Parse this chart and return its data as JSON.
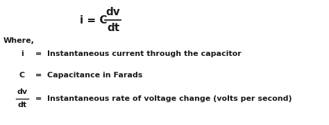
{
  "bg_color": "#ffffff",
  "text_color": "#1a1a1a",
  "where_text": "Where,",
  "line1_sym": "i",
  "line1_right": "Instantaneous current through the capacitor",
  "line2_sym": "C",
  "line2_right": "Capacitance in Farads",
  "line3_num": "dv",
  "line3_den": "dt",
  "line3_right": "Instantaneous rate of voltage change (volts per second)",
  "fig_width": 4.74,
  "fig_height": 1.81,
  "dpi": 100
}
